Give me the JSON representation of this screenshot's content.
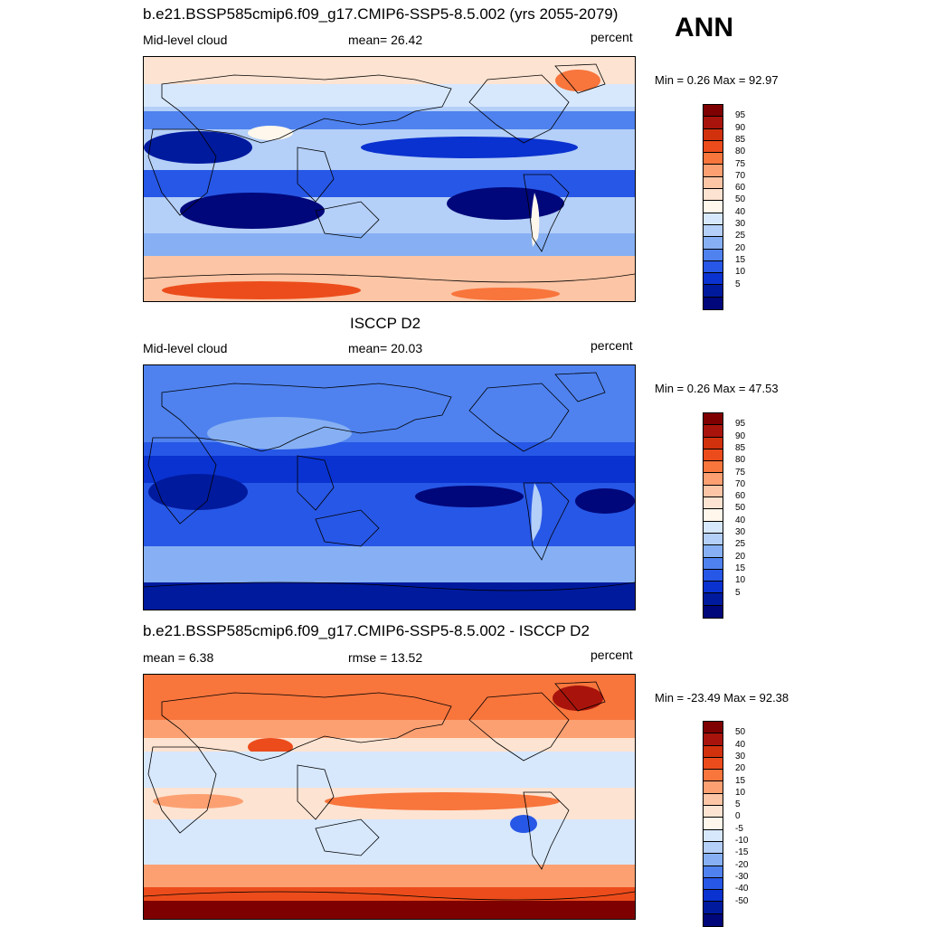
{
  "season": "ANN",
  "chart_data": [
    {
      "type": "heatmap",
      "title": "b.e21.BSSP585cmip6.f09_g17.CMIP6-SSP5-8.5.002 (yrs 2055-2079)",
      "left_label": "Mid-level cloud",
      "center_label": "mean=  26.42",
      "right_label": "percent",
      "minmax": "Min =   0.26 Max =  92.97",
      "mean": 26.42,
      "min": 0.26,
      "max": 92.97,
      "colorbar_levels": [
        "95",
        "90",
        "85",
        "80",
        "75",
        "70",
        "60",
        "50",
        "40",
        "30",
        "25",
        "20",
        "15",
        "10",
        "5"
      ],
      "colorbar_colors": [
        "#7f0000",
        "#a8140b",
        "#d2310d",
        "#ec4c1b",
        "#f8753c",
        "#fca072",
        "#fcc5a5",
        "#fde3d1",
        "#fff7ec",
        "#d7e8fd",
        "#b4cff8",
        "#86b0f3",
        "#4f82ef",
        "#2757e6",
        "#0a32d0",
        "#001a9e",
        "#00077a"
      ]
    },
    {
      "type": "heatmap",
      "title": "ISCCP D2",
      "left_label": "Mid-level cloud",
      "center_label": "mean=  20.03",
      "right_label": "percent",
      "minmax": "Min =   0.26 Max =  47.53",
      "mean": 20.03,
      "min": 0.26,
      "max": 47.53,
      "colorbar_levels": [
        "95",
        "90",
        "85",
        "80",
        "75",
        "70",
        "60",
        "50",
        "40",
        "30",
        "25",
        "20",
        "15",
        "10",
        "5"
      ],
      "colorbar_colors": [
        "#7f0000",
        "#a8140b",
        "#d2310d",
        "#ec4c1b",
        "#f8753c",
        "#fca072",
        "#fcc5a5",
        "#fde3d1",
        "#fff7ec",
        "#d7e8fd",
        "#b4cff8",
        "#86b0f3",
        "#4f82ef",
        "#2757e6",
        "#0a32d0",
        "#001a9e",
        "#00077a"
      ]
    },
    {
      "type": "heatmap",
      "title": "b.e21.BSSP585cmip6.f09_g17.CMIP6-SSP5-8.5.002 - ISCCP D2",
      "left_label": "mean =   6.38",
      "center_label": "rmse =  13.52",
      "right_label": "percent",
      "minmax": "Min = -23.49 Max =  92.38",
      "mean": 6.38,
      "rmse": 13.52,
      "min": -23.49,
      "max": 92.38,
      "colorbar_levels": [
        "50",
        "40",
        "30",
        "20",
        "15",
        "10",
        "5",
        "0",
        "-5",
        "-10",
        "-15",
        "-20",
        "-30",
        "-40",
        "-50"
      ],
      "colorbar_colors": [
        "#7f0000",
        "#a8140b",
        "#d2310d",
        "#ec4c1b",
        "#f8753c",
        "#fca072",
        "#fcc5a5",
        "#fde3d1",
        "#fff7ec",
        "#d7e8fd",
        "#b4cff8",
        "#86b0f3",
        "#4f82ef",
        "#2757e6",
        "#0a32d0",
        "#001a9e",
        "#00077a"
      ]
    }
  ]
}
